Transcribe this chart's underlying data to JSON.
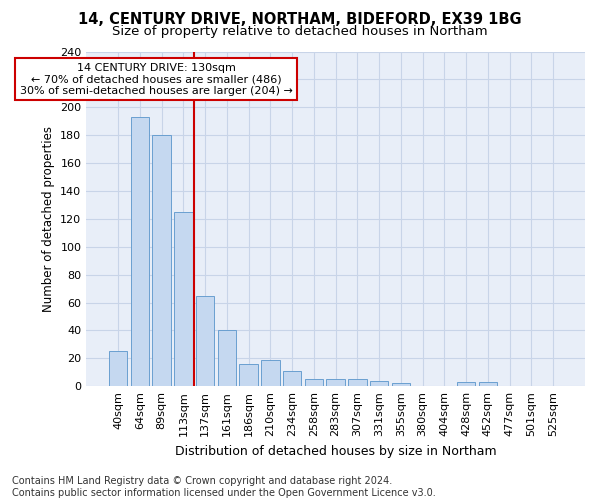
{
  "title1": "14, CENTURY DRIVE, NORTHAM, BIDEFORD, EX39 1BG",
  "title2": "Size of property relative to detached houses in Northam",
  "xlabel": "Distribution of detached houses by size in Northam",
  "ylabel": "Number of detached properties",
  "categories": [
    "40sqm",
    "64sqm",
    "89sqm",
    "113sqm",
    "137sqm",
    "161sqm",
    "186sqm",
    "210sqm",
    "234sqm",
    "258sqm",
    "283sqm",
    "307sqm",
    "331sqm",
    "355sqm",
    "380sqm",
    "404sqm",
    "428sqm",
    "452sqm",
    "477sqm",
    "501sqm",
    "525sqm"
  ],
  "values": [
    25,
    193,
    180,
    125,
    65,
    40,
    16,
    19,
    11,
    5,
    5,
    5,
    4,
    2,
    0,
    0,
    3,
    3,
    0,
    0,
    0
  ],
  "bar_color": "#c5d8f0",
  "bar_edge_color": "#6a9fd0",
  "vline_color": "#cc0000",
  "annotation_text": "14 CENTURY DRIVE: 130sqm\n← 70% of detached houses are smaller (486)\n30% of semi-detached houses are larger (204) →",
  "annotation_box_color": "#ffffff",
  "annotation_box_edge": "#cc0000",
  "ylim": [
    0,
    240
  ],
  "yticks": [
    0,
    20,
    40,
    60,
    80,
    100,
    120,
    140,
    160,
    180,
    200,
    220,
    240
  ],
  "grid_color": "#c8d4e8",
  "bg_color": "#e8eef8",
  "footnote": "Contains HM Land Registry data © Crown copyright and database right 2024.\nContains public sector information licensed under the Open Government Licence v3.0.",
  "title1_fontsize": 10.5,
  "title2_fontsize": 9.5,
  "xlabel_fontsize": 9,
  "ylabel_fontsize": 8.5,
  "tick_fontsize": 8,
  "ann_fontsize": 8,
  "footnote_fontsize": 7
}
